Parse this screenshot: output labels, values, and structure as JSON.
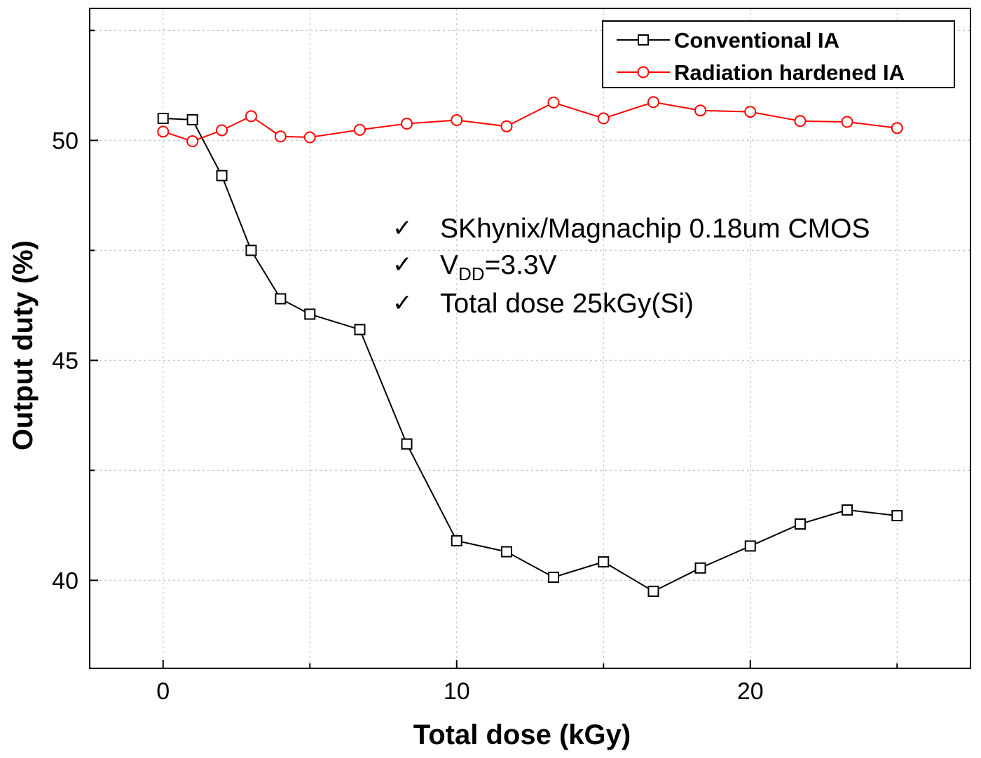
{
  "chart_data": {
    "type": "line",
    "title": "",
    "xlabel": "Total dose (kGy)",
    "ylabel": "Output duty (%)",
    "xlim": [
      -2.5,
      27.5
    ],
    "ylim": [
      38,
      53
    ],
    "xticks": [
      0,
      10,
      20
    ],
    "xtick_labels": [
      "0",
      "10",
      "20"
    ],
    "yticks": [
      40,
      45,
      50
    ],
    "ytick_labels": [
      "40",
      "45",
      "50"
    ],
    "minor_yticks": [
      42.5,
      47.5,
      52.5
    ],
    "minor_xticks": [
      5,
      15,
      25
    ],
    "grid": true,
    "legend_position": "top-right",
    "series": [
      {
        "name": "Conventional IA",
        "color": "#000000",
        "marker": "square",
        "x": [
          0,
          1,
          2,
          3,
          4,
          5,
          6.7,
          8.3,
          10,
          11.7,
          13.3,
          15,
          16.7,
          18.3,
          20,
          21.7,
          23.3,
          25
        ],
        "y": [
          50.5,
          50.47,
          49.2,
          47.5,
          46.4,
          46.05,
          45.7,
          43.1,
          40.9,
          40.65,
          40.07,
          40.42,
          39.75,
          40.28,
          40.78,
          41.28,
          41.6,
          41.47
        ]
      },
      {
        "name": "Radiation hardened IA",
        "color": "#ff0000",
        "marker": "circle",
        "x": [
          0,
          1,
          2,
          3,
          4,
          5,
          6.7,
          8.3,
          10,
          11.7,
          13.3,
          15,
          16.7,
          18.3,
          20,
          21.7,
          23.3,
          25
        ],
        "y": [
          50.2,
          49.98,
          50.23,
          50.55,
          50.09,
          50.07,
          50.24,
          50.38,
          50.46,
          50.32,
          50.86,
          50.5,
          50.87,
          50.68,
          50.65,
          50.44,
          50.42,
          50.28
        ]
      }
    ],
    "annotations": [
      {
        "check": "✓",
        "text": "SKhynix/Magnachip 0.18um CMOS"
      },
      {
        "check": "✓",
        "main": "V",
        "sub": "DD",
        "rest": "=3.3V"
      },
      {
        "check": "✓",
        "text": "Total dose 25kGy(Si)"
      }
    ]
  }
}
